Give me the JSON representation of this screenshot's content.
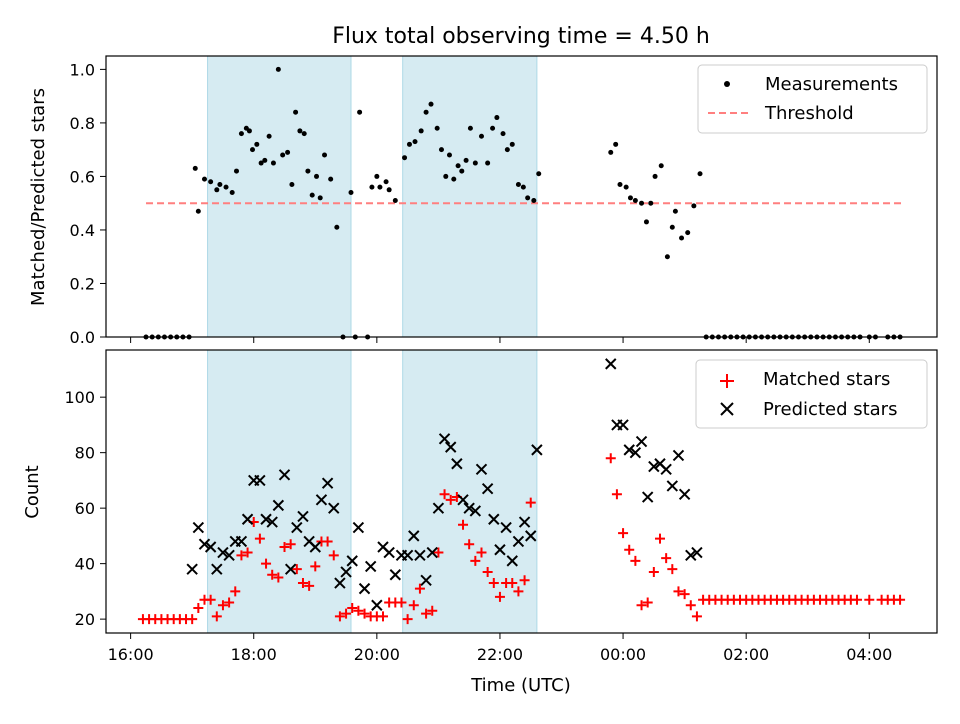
{
  "chart_data": [
    {
      "type": "scatter",
      "title": "Flux total observing time = 4.50 h",
      "xlabel": "",
      "ylabel": "Matched/Predicted stars",
      "xlim": [
        15.6,
        29.1
      ],
      "ylim": [
        0.0,
        1.05
      ],
      "x_ticks": [
        16,
        18,
        20,
        22,
        24,
        26,
        28
      ],
      "y_ticks": [
        0.0,
        0.2,
        0.4,
        0.6,
        0.8,
        1.0
      ],
      "y_tick_labels": [
        "0.0",
        "0.2",
        "0.4",
        "0.6",
        "0.8",
        "1.0"
      ],
      "shaded_intervals": [
        [
          17.25,
          19.58
        ],
        [
          20.42,
          22.6
        ]
      ],
      "threshold": {
        "name": "Threshold",
        "value": 0.5,
        "x_range": [
          16.25,
          28.55
        ],
        "color": "#ff7f7f"
      },
      "legend": {
        "position": "upper right",
        "entries": [
          "Measurements",
          "Threshold"
        ]
      },
      "series": [
        {
          "name": "Measurements",
          "color": "#000000",
          "x": [
            16.25,
            16.35,
            16.45,
            16.55,
            16.65,
            16.75,
            16.85,
            16.95,
            17.05,
            17.1,
            17.2,
            17.3,
            17.4,
            17.45,
            17.55,
            17.65,
            17.72,
            17.8,
            17.88,
            17.93,
            17.98,
            18.05,
            18.12,
            18.18,
            18.25,
            18.32,
            18.4,
            18.47,
            18.55,
            18.62,
            18.68,
            18.75,
            18.82,
            18.88,
            18.95,
            19.02,
            19.08,
            19.15,
            19.25,
            19.35,
            19.45,
            19.58,
            19.65,
            19.72,
            19.85,
            19.92,
            20.0,
            20.05,
            20.15,
            20.2,
            20.3,
            20.45,
            20.53,
            20.62,
            20.72,
            20.8,
            20.88,
            20.98,
            21.05,
            21.12,
            21.18,
            21.25,
            21.32,
            21.38,
            21.45,
            21.52,
            21.6,
            21.7,
            21.8,
            21.88,
            21.95,
            22.05,
            22.12,
            22.2,
            22.3,
            22.38,
            22.45,
            22.55,
            22.63,
            23.8,
            23.88,
            23.95,
            24.05,
            24.12,
            24.2,
            24.3,
            24.38,
            24.45,
            24.52,
            24.62,
            24.72,
            24.8,
            24.85,
            24.95,
            25.05,
            25.15,
            25.25,
            25.35,
            25.45,
            25.55,
            25.65,
            25.75,
            25.85,
            25.95,
            26.05,
            26.15,
            26.25,
            26.35,
            26.45,
            26.55,
            26.65,
            26.75,
            26.85,
            26.95,
            27.05,
            27.15,
            27.25,
            27.35,
            27.45,
            27.55,
            27.65,
            27.75,
            27.85,
            28.0,
            28.1,
            28.3,
            28.4,
            28.5
          ],
          "y": [
            0,
            0,
            0,
            0,
            0,
            0,
            0,
            0,
            0.63,
            0.47,
            0.59,
            0.58,
            0.55,
            0.57,
            0.56,
            0.54,
            0.62,
            0.76,
            0.78,
            0.77,
            0.7,
            0.72,
            0.65,
            0.66,
            0.75,
            0.65,
            1.0,
            0.68,
            0.69,
            0.57,
            0.84,
            0.77,
            0.76,
            0.62,
            0.53,
            0.6,
            0.52,
            0.68,
            0.59,
            0.41,
            0,
            0.54,
            0,
            0.84,
            0,
            0.56,
            0.6,
            0.56,
            0.58,
            0.55,
            0.51,
            0.67,
            0.72,
            0.73,
            0.77,
            0.84,
            0.87,
            0.78,
            0.7,
            0.6,
            0.68,
            0.59,
            0.64,
            0.62,
            0.66,
            0.78,
            0.65,
            0.75,
            0.65,
            0.78,
            0.82,
            0.76,
            0.7,
            0.72,
            0.57,
            0.56,
            0.52,
            0.51,
            0.61,
            0.69,
            0.72,
            0.57,
            0.56,
            0.52,
            0.51,
            0.5,
            0.43,
            0.5,
            0.6,
            0.64,
            0.3,
            0.41,
            0.47,
            0.37,
            0.39,
            0.49,
            0.61,
            0,
            0,
            0,
            0,
            0,
            0,
            0,
            0,
            0,
            0,
            0,
            0,
            0,
            0,
            0,
            0,
            0,
            0,
            0,
            0,
            0,
            0,
            0,
            0,
            0,
            0,
            0,
            0,
            0,
            0,
            0
          ]
        }
      ]
    },
    {
      "type": "scatter",
      "title": "",
      "xlabel": "Time (UTC)",
      "ylabel": "Count",
      "xlim": [
        15.6,
        29.1
      ],
      "ylim": [
        15,
        117
      ],
      "x_ticks": [
        16,
        18,
        20,
        22,
        24,
        26,
        28
      ],
      "x_tick_labels": [
        "16:00",
        "18:00",
        "20:00",
        "22:00",
        "00:00",
        "02:00",
        "04:00"
      ],
      "y_ticks": [
        20,
        40,
        60,
        80,
        100
      ],
      "y_tick_labels": [
        "20",
        "40",
        "60",
        "80",
        "100"
      ],
      "shaded_intervals": [
        [
          17.25,
          19.58
        ],
        [
          20.42,
          22.6
        ]
      ],
      "legend": {
        "position": "upper right",
        "entries": [
          "Matched stars",
          "Predicted stars"
        ]
      },
      "series": [
        {
          "name": "Matched stars",
          "marker": "plus",
          "color": "#ff0000",
          "x": [
            16.2,
            16.3,
            16.4,
            16.5,
            16.6,
            16.7,
            16.8,
            16.9,
            17.0,
            17.1,
            17.2,
            17.3,
            17.4,
            17.5,
            17.6,
            17.7,
            17.8,
            17.9,
            18.0,
            18.1,
            18.2,
            18.3,
            18.4,
            18.5,
            18.6,
            18.7,
            18.8,
            18.9,
            19.0,
            19.1,
            19.2,
            19.3,
            19.4,
            19.5,
            19.6,
            19.7,
            19.8,
            19.9,
            20.0,
            20.1,
            20.2,
            20.3,
            20.4,
            20.5,
            20.6,
            20.7,
            20.8,
            20.9,
            21.0,
            21.1,
            21.2,
            21.3,
            21.4,
            21.5,
            21.6,
            21.7,
            21.8,
            21.9,
            22.0,
            22.1,
            22.2,
            22.3,
            22.4,
            22.5,
            23.8,
            23.9,
            24.0,
            24.1,
            24.2,
            24.3,
            24.4,
            24.5,
            24.6,
            24.7,
            24.8,
            24.9,
            25.0,
            25.1,
            25.2,
            25.3,
            25.4,
            25.5,
            25.6,
            25.7,
            25.8,
            25.9,
            26.0,
            26.1,
            26.2,
            26.3,
            26.4,
            26.5,
            26.6,
            26.7,
            26.8,
            26.9,
            27.0,
            27.1,
            27.2,
            27.3,
            27.4,
            27.5,
            27.6,
            27.7,
            27.8,
            28.0,
            28.2,
            28.3,
            28.4,
            28.5
          ],
          "y": [
            20,
            20,
            20,
            20,
            20,
            20,
            20,
            20,
            20,
            24,
            27,
            27,
            21,
            25,
            26,
            30,
            43,
            44,
            55,
            49,
            40,
            36,
            35,
            46,
            47,
            38,
            33,
            32,
            39,
            48,
            48,
            43,
            21,
            22,
            24,
            23,
            22,
            21,
            21,
            21,
            26,
            26,
            26,
            20,
            25,
            31,
            22,
            23,
            44,
            65,
            63,
            64,
            54,
            47,
            41,
            44,
            37,
            33,
            28,
            33,
            33,
            30,
            34,
            62,
            78,
            65,
            51,
            45,
            41,
            25,
            26,
            37,
            49,
            42,
            38,
            30,
            29,
            25,
            21,
            27,
            27,
            27,
            27,
            27,
            27,
            27,
            27,
            27,
            27,
            27,
            27,
            27,
            27,
            27,
            27,
            27,
            27,
            27,
            27,
            27,
            27,
            27,
            27,
            27,
            27,
            27,
            27,
            27,
            27,
            27
          ]
        },
        {
          "name": "Predicted stars",
          "marker": "x",
          "color": "#000000",
          "x": [
            17.0,
            17.1,
            17.2,
            17.3,
            17.4,
            17.5,
            17.6,
            17.7,
            17.8,
            17.9,
            18.0,
            18.1,
            18.2,
            18.3,
            18.4,
            18.5,
            18.6,
            18.7,
            18.8,
            18.9,
            19.0,
            19.1,
            19.2,
            19.3,
            19.4,
            19.5,
            19.6,
            19.7,
            19.8,
            19.9,
            20.0,
            20.1,
            20.2,
            20.3,
            20.4,
            20.5,
            20.6,
            20.7,
            20.8,
            20.9,
            21.0,
            21.1,
            21.2,
            21.3,
            21.4,
            21.5,
            21.6,
            21.7,
            21.8,
            21.9,
            22.0,
            22.1,
            22.2,
            22.3,
            22.4,
            22.5,
            22.6,
            23.8,
            23.9,
            24.0,
            24.1,
            24.2,
            24.3,
            24.4,
            24.5,
            24.6,
            24.7,
            24.8,
            24.9,
            25.0,
            25.1,
            25.2
          ],
          "y": [
            38,
            53,
            47,
            46,
            38,
            44,
            43,
            48,
            48,
            56,
            70,
            70,
            56,
            55,
            61,
            72,
            38,
            53,
            57,
            48,
            46,
            63,
            69,
            60,
            33,
            37,
            41,
            53,
            31,
            39,
            25,
            46,
            44,
            36,
            43,
            43,
            50,
            43,
            34,
            44,
            60,
            85,
            82,
            76,
            63,
            60,
            59,
            74,
            67,
            56,
            45,
            53,
            41,
            48,
            55,
            50,
            81,
            112,
            90,
            90,
            81,
            80,
            84,
            64,
            75,
            76,
            74,
            68,
            79,
            65,
            43,
            44
          ]
        }
      ]
    }
  ]
}
